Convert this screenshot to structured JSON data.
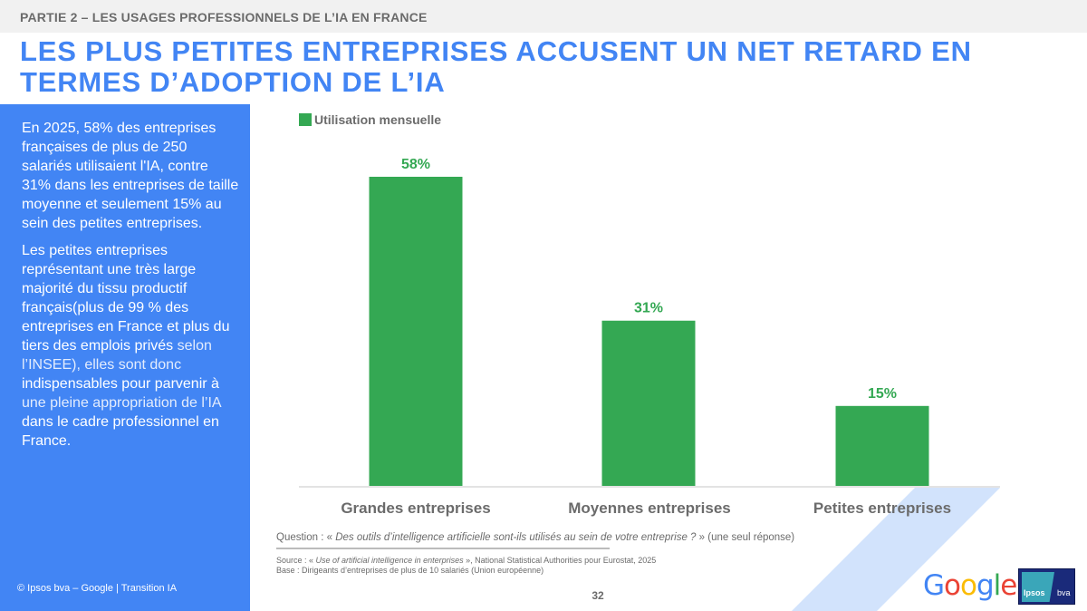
{
  "header": {
    "section": "PARTIE 2 – LES USAGES PROFESSIONNELS DE L’IA EN FRANCE",
    "title": "LES PLUS PETITES ENTREPRISES ACCUSENT UN NET RETARD EN TERMES D’ADOPTION DE L’IA"
  },
  "sidebar": {
    "paragraph1": "En 2025, 58% des entreprises françaises de plus de 250 salariés utilisaient l'IA, contre 31% dans les entreprises de taille moyenne et seulement 15% au sein des petites entreprises.",
    "paragraph2_a": "Les petites entreprises représentant une très large majorité du tissu productif français(plus de 99 % des entreprises en France et plus du tiers des emplois privés ",
    "paragraph2_b": "selon l’INSEE), elles sont donc",
    "paragraph2_c": " indispensables pour parvenir à ",
    "paragraph2_d": "une pleine appropriation de l’IA",
    "paragraph2_e": " dans le cadre professionnel en France.",
    "copyright": "© Ipsos bva – Google | Transition IA"
  },
  "chart_data": {
    "type": "bar",
    "title": "",
    "xlabel": "",
    "ylabel": "",
    "categories": [
      "Grandes entreprises",
      "Moyennes entreprises",
      "Petites entreprises"
    ],
    "series": [
      {
        "name": "Utilisation mensuelle",
        "values": [
          58,
          31,
          15
        ],
        "labels": [
          "58%",
          "31%",
          "15%"
        ],
        "color": "#34a853"
      }
    ],
    "ylim": [
      0,
      58
    ],
    "grid": false,
    "legend": "top-left"
  },
  "footer": {
    "question_prefix": "Question : « ",
    "question_italic": "Des outils d’intelligence artificielle sont-ils utilisés au sein de votre entreprise ?",
    "question_suffix": " » (une seul réponse)",
    "source_prefix": "Source : « ",
    "source_italic": "Use of artificial intelligence in enterprises",
    "source_suffix": " », National Statistical Authorities pour Eurostat, 2025",
    "base": "Base : Dirigeants d’entreprises de plus de 10 salariés (Union européenne)",
    "page_number": "32"
  },
  "logos": {
    "google_letters": [
      "G",
      "o",
      "o",
      "g",
      "l",
      "e"
    ],
    "google_colors": [
      "#4285f4",
      "#ea4335",
      "#fbbc05",
      "#4285f4",
      "#34a853",
      "#ea4335"
    ],
    "ipsos": "Ipsos",
    "bva": "bva"
  },
  "colors": {
    "accent_blue": "#4285f4",
    "bar_green": "#34a853",
    "stripe_light_blue": "#d2e3fc"
  }
}
